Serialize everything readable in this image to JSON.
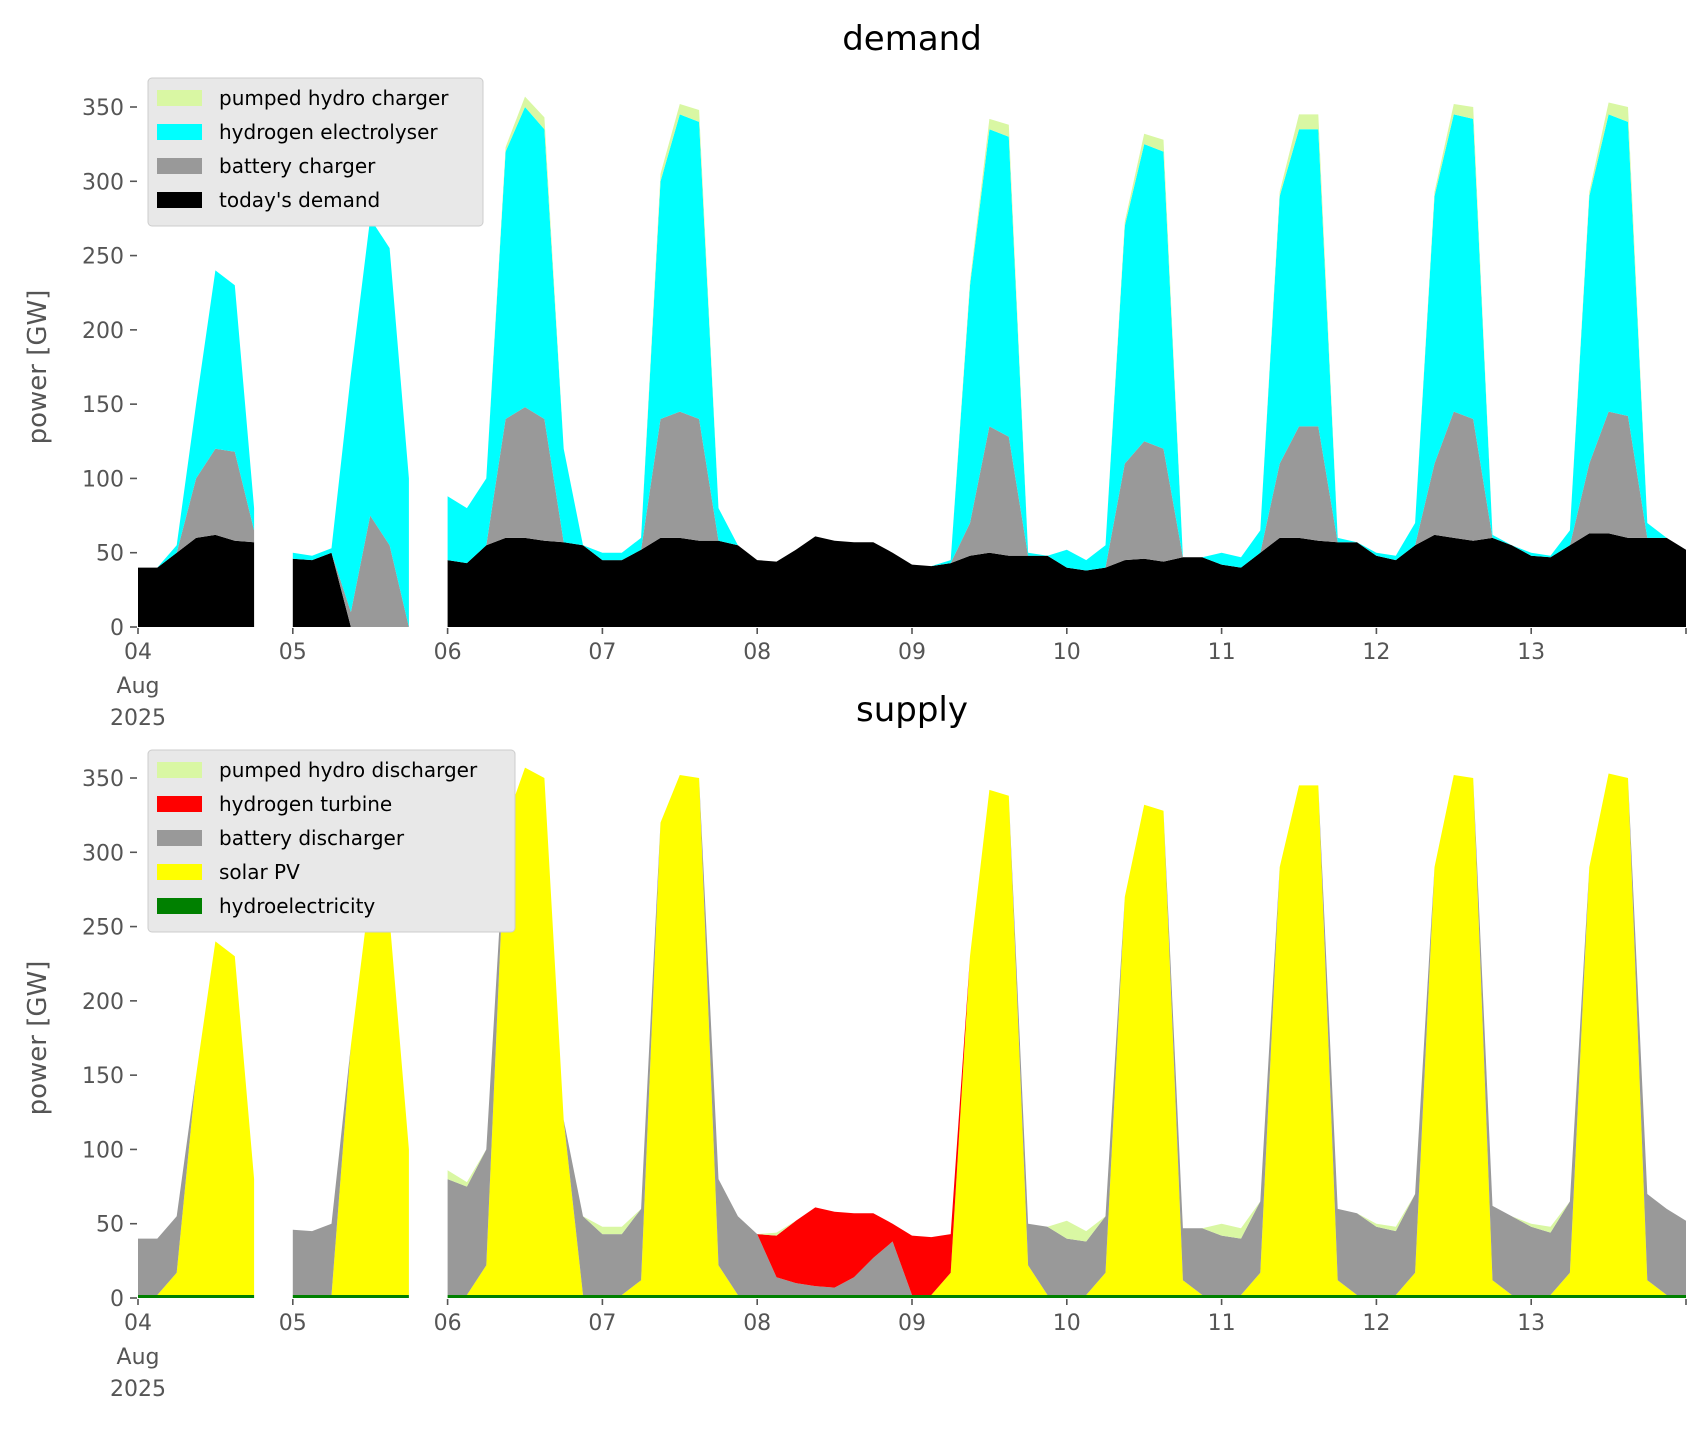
{
  "chart_data": [
    {
      "type": "area",
      "stacked": true,
      "title": "demand",
      "ylabel": "power [GW]",
      "ylim": [
        0,
        370
      ],
      "yticks": [
        0,
        50,
        100,
        150,
        200,
        250,
        300,
        350
      ],
      "xlim": [
        "2025-08-04T00",
        "2025-08-14T00"
      ],
      "xtick_labels": [
        "04",
        "05",
        "06",
        "07",
        "08",
        "09",
        "10",
        "11",
        "12",
        "13"
      ],
      "xtick_first_extra": [
        "Aug",
        "2025"
      ],
      "grid": false,
      "legend_position": "top-left",
      "legend": [
        "pumped hydro charger",
        "hydrogen electrolyser",
        "battery charger",
        "today's demand"
      ],
      "series": [
        {
          "name": "today's demand",
          "color": "#000000",
          "values": [
            40,
            40,
            50,
            60,
            62,
            58,
            57,
            null,
            46,
            45,
            50,
            0,
            0,
            0,
            0,
            null,
            45,
            43,
            55,
            60,
            60,
            58,
            57,
            55,
            45,
            45,
            52,
            60,
            60,
            58,
            58,
            55,
            45,
            44,
            52,
            61,
            58,
            57,
            57,
            50,
            42,
            41,
            43,
            48,
            50,
            48,
            48,
            48,
            40,
            38,
            40,
            45,
            46,
            44,
            47,
            47,
            42,
            40,
            50,
            60,
            60,
            58,
            57,
            57,
            48,
            45,
            55,
            62,
            60,
            58,
            60,
            55,
            48,
            47,
            55,
            63,
            63,
            60,
            60,
            60,
            52
          ]
        },
        {
          "name": "battery charger",
          "color": "#999999",
          "values": [
            0,
            0,
            0,
            40,
            58,
            60,
            8,
            null,
            0,
            0,
            0,
            10,
            75,
            55,
            0,
            null,
            0,
            0,
            0,
            80,
            88,
            82,
            0,
            0,
            0,
            0,
            0,
            80,
            85,
            82,
            0,
            0,
            0,
            0,
            0,
            0,
            0,
            0,
            0,
            0,
            0,
            0,
            0,
            22,
            85,
            80,
            0,
            0,
            0,
            0,
            0,
            65,
            79,
            76,
            0,
            0,
            0,
            0,
            0,
            50,
            75,
            77,
            0,
            0,
            0,
            0,
            0,
            48,
            85,
            82,
            0,
            0,
            0,
            0,
            0,
            47,
            82,
            82,
            0,
            0,
            0
          ]
        },
        {
          "name": "hydrogen electrolyser",
          "color": "#00ffff",
          "values": [
            0,
            0,
            5,
            50,
            120,
            112,
            15,
            null,
            4,
            3,
            3,
            160,
            200,
            200,
            100,
            null,
            43,
            37,
            45,
            180,
            202,
            195,
            63,
            0,
            5,
            5,
            8,
            160,
            200,
            200,
            22,
            0,
            0,
            0,
            0,
            0,
            0,
            0,
            0,
            0,
            0,
            0,
            2,
            160,
            200,
            202,
            2,
            0,
            12,
            7,
            15,
            160,
            200,
            200,
            0,
            0,
            8,
            7,
            15,
            180,
            200,
            200,
            3,
            0,
            2,
            3,
            15,
            180,
            200,
            202,
            2,
            0,
            2,
            1,
            10,
            180,
            200,
            198,
            10,
            0,
            0
          ]
        },
        {
          "name": "pumped hydro charger",
          "color": "#d9f7a3",
          "values": [
            0,
            0,
            0,
            0,
            0,
            0,
            0,
            null,
            0,
            0,
            0,
            0,
            0,
            0,
            0,
            null,
            0,
            0,
            0,
            3,
            7,
            8,
            0,
            0,
            0,
            0,
            0,
            5,
            7,
            8,
            0,
            0,
            0,
            0,
            0,
            0,
            0,
            0,
            0,
            0,
            0,
            0,
            0,
            3,
            7,
            8,
            0,
            0,
            0,
            0,
            0,
            3,
            7,
            8,
            0,
            0,
            0,
            0,
            0,
            3,
            10,
            10,
            0,
            0,
            0,
            0,
            0,
            3,
            7,
            8,
            0,
            0,
            0,
            0,
            0,
            3,
            8,
            10,
            0,
            0,
            0
          ]
        }
      ]
    },
    {
      "type": "area",
      "stacked": true,
      "title": "supply",
      "ylabel": "power [GW]",
      "ylim": [
        0,
        370
      ],
      "yticks": [
        0,
        50,
        100,
        150,
        200,
        250,
        300,
        350
      ],
      "xlim": [
        "2025-08-04T00",
        "2025-08-14T00"
      ],
      "xtick_labels": [
        "04",
        "05",
        "06",
        "07",
        "08",
        "09",
        "10",
        "11",
        "12",
        "13"
      ],
      "xtick_first_extra": [
        "Aug",
        "2025"
      ],
      "grid": false,
      "legend_position": "top-left",
      "legend": [
        "pumped hydro discharger",
        "hydrogen turbine",
        "battery discharger",
        "solar PV",
        "hydroelectricity"
      ],
      "series": [
        {
          "name": "hydroelectricity",
          "color": "#008000",
          "values": [
            2,
            2,
            2,
            2,
            2,
            2,
            2,
            null,
            2,
            2,
            2,
            2,
            2,
            2,
            2,
            null,
            2,
            2,
            2,
            2,
            2,
            2,
            2,
            2,
            2,
            2,
            2,
            2,
            2,
            2,
            2,
            2,
            2,
            2,
            2,
            2,
            2,
            2,
            2,
            2,
            2,
            2,
            2,
            2,
            2,
            2,
            2,
            2,
            2,
            2,
            2,
            2,
            2,
            2,
            2,
            2,
            2,
            2,
            2,
            2,
            2,
            2,
            2,
            2,
            2,
            2,
            2,
            2,
            2,
            2,
            2,
            2,
            2,
            2,
            2,
            2,
            2,
            2,
            2,
            2,
            2
          ]
        },
        {
          "name": "solar PV",
          "color": "#ffff00",
          "values": [
            0,
            0,
            15,
            148,
            238,
            228,
            78,
            null,
            0,
            0,
            0,
            168,
            273,
            253,
            98,
            null,
            0,
            0,
            20,
            318,
            355,
            348,
            118,
            0,
            0,
            0,
            10,
            318,
            350,
            348,
            20,
            0,
            0,
            0,
            0,
            0,
            0,
            0,
            0,
            0,
            0,
            0,
            15,
            228,
            340,
            336,
            20,
            0,
            0,
            0,
            15,
            268,
            330,
            326,
            10,
            0,
            0,
            0,
            15,
            288,
            343,
            343,
            10,
            0,
            0,
            0,
            15,
            288,
            350,
            348,
            10,
            0,
            0,
            0,
            15,
            288,
            351,
            348,
            10,
            0,
            0
          ]
        },
        {
          "name": "battery discharger",
          "color": "#999999",
          "values": [
            38,
            38,
            38,
            0,
            0,
            0,
            0,
            null,
            44,
            43,
            48,
            0,
            0,
            0,
            0,
            null,
            78,
            73,
            78,
            0,
            0,
            0,
            0,
            53,
            41,
            41,
            48,
            0,
            0,
            0,
            58,
            53,
            41,
            12,
            8,
            6,
            5,
            12,
            25,
            36,
            0,
            0,
            0,
            0,
            0,
            0,
            28,
            46,
            38,
            36,
            38,
            0,
            0,
            0,
            35,
            45,
            40,
            38,
            48,
            0,
            0,
            0,
            48,
            55,
            46,
            43,
            53,
            0,
            0,
            0,
            50,
            53,
            46,
            42,
            48,
            0,
            0,
            0,
            58,
            58,
            50
          ]
        },
        {
          "name": "hydrogen turbine",
          "color": "#ff0000",
          "values": [
            0,
            0,
            0,
            0,
            0,
            0,
            0,
            null,
            0,
            0,
            0,
            0,
            0,
            0,
            0,
            null,
            0,
            0,
            0,
            0,
            0,
            0,
            0,
            0,
            0,
            0,
            0,
            0,
            0,
            0,
            0,
            0,
            0,
            28,
            42,
            53,
            51,
            43,
            30,
            12,
            40,
            39,
            26,
            0,
            0,
            0,
            0,
            0,
            0,
            0,
            0,
            0,
            0,
            0,
            0,
            0,
            0,
            0,
            0,
            0,
            0,
            0,
            0,
            0,
            0,
            0,
            0,
            0,
            0,
            0,
            0,
            0,
            0,
            0,
            0,
            0,
            0,
            0,
            0,
            0,
            0
          ]
        },
        {
          "name": "pumped hydro discharger",
          "color": "#d9f7a3",
          "values": [
            0,
            0,
            0,
            0,
            0,
            0,
            0,
            null,
            0,
            0,
            0,
            0,
            0,
            0,
            0,
            null,
            6,
            3,
            0,
            0,
            0,
            0,
            0,
            0,
            5,
            5,
            0,
            0,
            0,
            0,
            0,
            0,
            0,
            2,
            0,
            0,
            0,
            0,
            0,
            0,
            0,
            0,
            0,
            0,
            0,
            0,
            0,
            0,
            12,
            7,
            0,
            0,
            0,
            0,
            0,
            0,
            8,
            7,
            0,
            0,
            0,
            0,
            0,
            0,
            2,
            3,
            0,
            0,
            0,
            0,
            0,
            0,
            2,
            4,
            0,
            0,
            0,
            0,
            0,
            0,
            0
          ]
        }
      ]
    }
  ],
  "x": [
    "2025-08-04T00",
    "2025-08-04T03",
    "2025-08-04T06",
    "2025-08-04T09",
    "2025-08-04T12",
    "2025-08-04T15",
    "2025-08-04T18",
    "2025-08-04T21",
    "2025-08-05T00",
    "2025-08-05T03",
    "2025-08-05T06",
    "2025-08-05T09",
    "2025-08-05T12",
    "2025-08-05T15",
    "2025-08-05T18",
    "2025-08-05T21",
    "2025-08-06T00",
    "2025-08-06T03",
    "2025-08-06T06",
    "2025-08-06T09",
    "2025-08-06T12",
    "2025-08-06T15",
    "2025-08-06T18",
    "2025-08-06T21",
    "2025-08-07T00",
    "2025-08-07T03",
    "2025-08-07T06",
    "2025-08-07T09",
    "2025-08-07T12",
    "2025-08-07T15",
    "2025-08-07T18",
    "2025-08-07T21",
    "2025-08-08T00",
    "2025-08-08T03",
    "2025-08-08T06",
    "2025-08-08T09",
    "2025-08-08T12",
    "2025-08-08T15",
    "2025-08-08T18",
    "2025-08-08T21",
    "2025-08-09T00",
    "2025-08-09T03",
    "2025-08-09T06",
    "2025-08-09T09",
    "2025-08-09T12",
    "2025-08-09T15",
    "2025-08-09T18",
    "2025-08-09T21",
    "2025-08-10T00",
    "2025-08-10T03",
    "2025-08-10T06",
    "2025-08-10T09",
    "2025-08-10T12",
    "2025-08-10T15",
    "2025-08-10T18",
    "2025-08-10T21",
    "2025-08-11T00",
    "2025-08-11T03",
    "2025-08-11T06",
    "2025-08-11T09",
    "2025-08-11T12",
    "2025-08-11T15",
    "2025-08-11T18",
    "2025-08-11T21",
    "2025-08-12T00",
    "2025-08-12T03",
    "2025-08-12T06",
    "2025-08-12T09",
    "2025-08-12T12",
    "2025-08-12T15",
    "2025-08-12T18",
    "2025-08-12T21",
    "2025-08-13T00",
    "2025-08-13T03",
    "2025-08-13T06",
    "2025-08-13T09",
    "2025-08-13T12",
    "2025-08-13T15",
    "2025-08-13T18",
    "2025-08-13T21",
    "2025-08-14T00"
  ]
}
